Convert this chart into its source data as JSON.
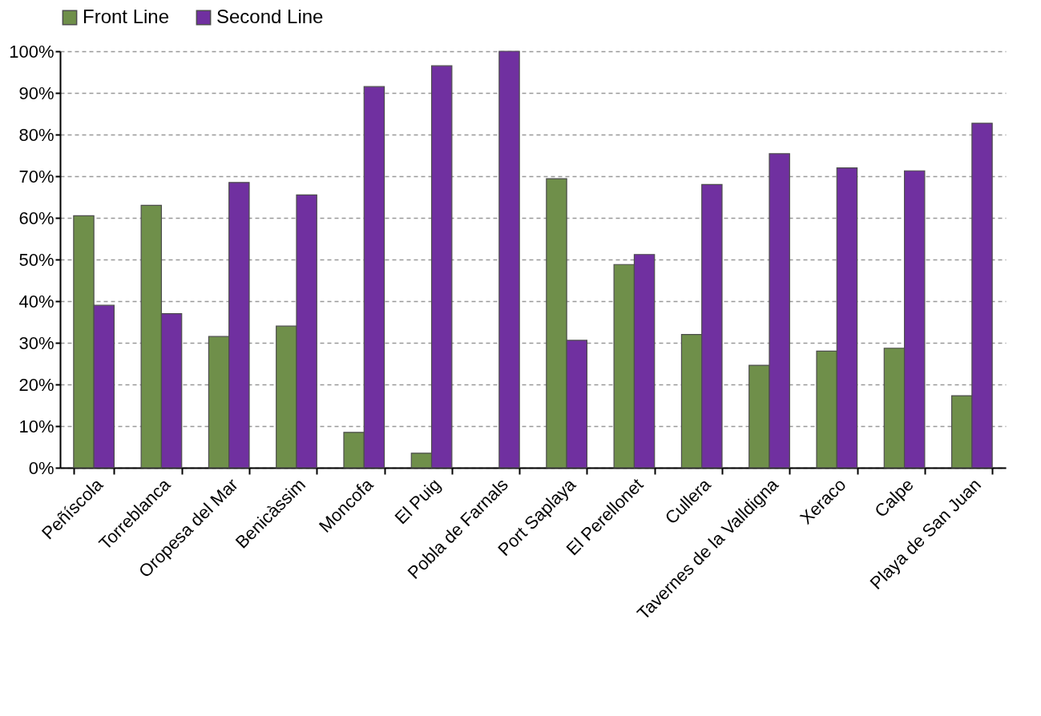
{
  "chart_data": {
    "type": "bar",
    "categories": [
      "Peñíscola",
      "Torreblanca",
      "Oropesa del Mar",
      "Benicàssim",
      "Moncofa",
      "El Puig",
      "Pobla de Farnals",
      "Port Saplaya",
      "El Perellonet",
      "Cullera",
      "Tavernes de la Valldigna",
      "Xeraco",
      "Calpe",
      "Playa de San Juan"
    ],
    "series": [
      {
        "name": "Front Line",
        "color": "#6f8f4a",
        "values": [
          60.5,
          63,
          31.5,
          34,
          8.5,
          3.5,
          null,
          69.4,
          48.8,
          32,
          24.6,
          28,
          28.7,
          17.3
        ]
      },
      {
        "name": "Second Line",
        "color": "#7030a0",
        "values": [
          39,
          37,
          68.5,
          65.5,
          91.5,
          96.5,
          100,
          30.6,
          51.2,
          68,
          75.4,
          72,
          71.3,
          82.7
        ]
      }
    ],
    "ylim": [
      0,
      100
    ],
    "yticks": [
      {
        "value": 0,
        "label": "0%"
      },
      {
        "value": 10,
        "label": "10%"
      },
      {
        "value": 20,
        "label": "20%"
      },
      {
        "value": 30,
        "label": "30%"
      },
      {
        "value": 40,
        "label": "40%"
      },
      {
        "value": 50,
        "label": "50%"
      },
      {
        "value": 60,
        "label": "60%"
      },
      {
        "value": 70,
        "label": "70%"
      },
      {
        "value": 80,
        "label": "80%"
      },
      {
        "value": 90,
        "label": "90%"
      },
      {
        "value": 100,
        "label": "100%"
      }
    ],
    "grid": "y",
    "legend": "top"
  }
}
